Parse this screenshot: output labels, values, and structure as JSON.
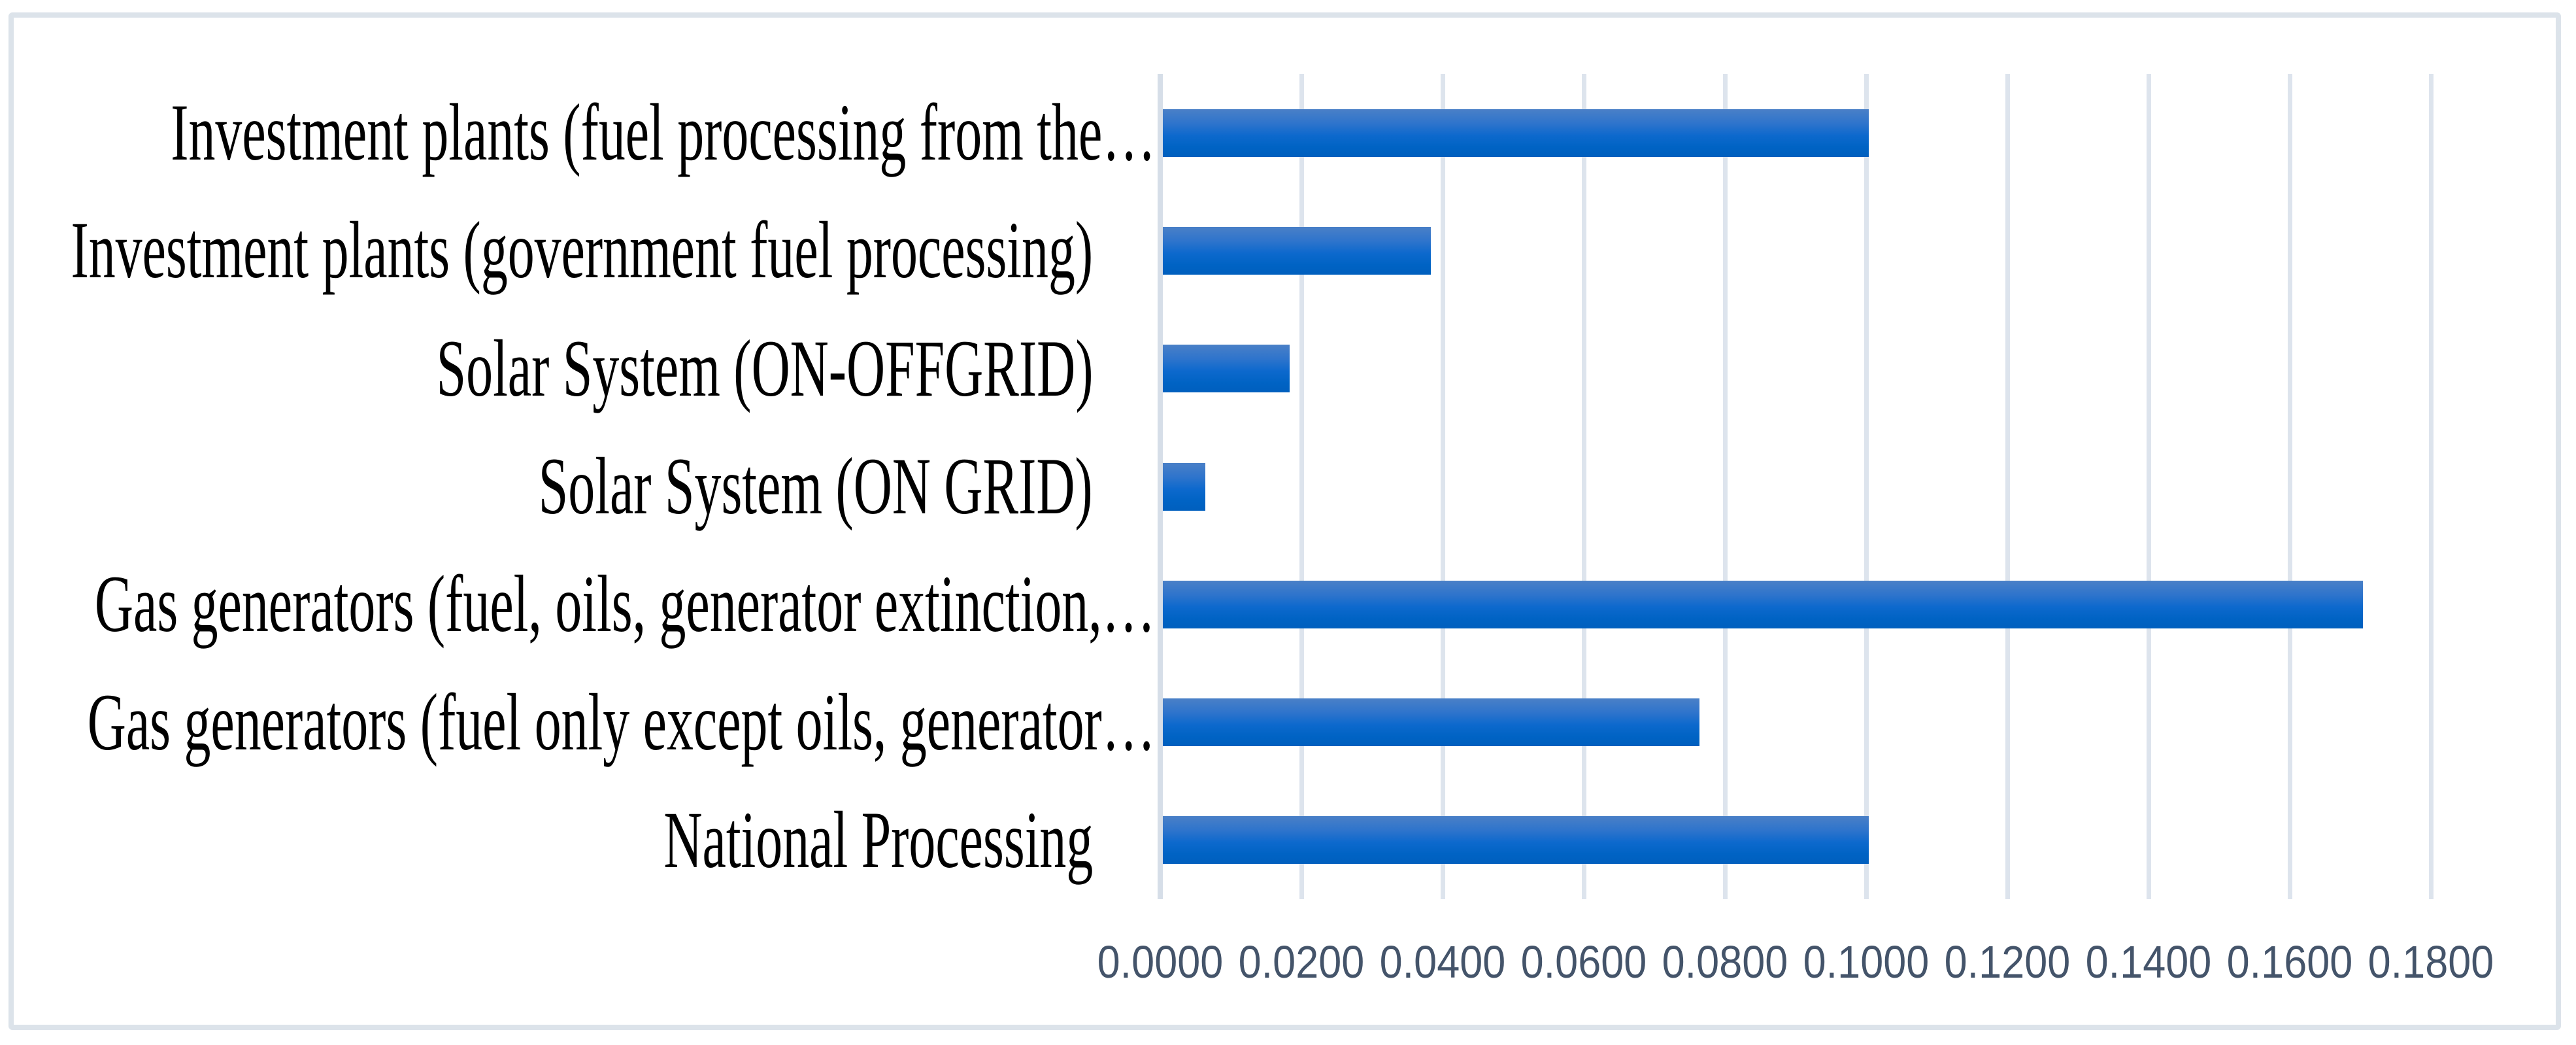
{
  "chart_data": {
    "type": "bar",
    "orientation": "horizontal",
    "title": "",
    "xlabel": "",
    "ylabel": "",
    "categories": [
      "Investment plants (fuel processing from the…",
      "Investment plants (government fuel processing)",
      "Solar System (ON-OFFGRID)",
      "Solar System (ON GRID)",
      "Gas generators (fuel, oils, generator extinction,…",
      "Gas generators (fuel only except oils, generator…",
      "National Processing"
    ],
    "values": [
      0.1,
      0.038,
      0.018,
      0.006,
      0.17,
      0.076,
      0.1
    ],
    "xlim": [
      0.0,
      0.18
    ],
    "x_tick_values": [
      0.0,
      0.02,
      0.04,
      0.06,
      0.08,
      0.1,
      0.12,
      0.14,
      0.16,
      0.18
    ],
    "x_tick_labels": [
      "0.0000",
      "0.0200",
      "0.0400",
      "0.0600",
      "0.0800",
      "0.1000",
      "0.1200",
      "0.1400",
      "0.1600",
      "0.1800"
    ],
    "grid": "vertical-gridlines-on",
    "legend": "none"
  },
  "colors": {
    "bar_gradient_top": "#4a80c7",
    "bar_gradient_upper_mid": "#2e74cc",
    "bar_gradient_mid": "#0d69cd",
    "bar_gradient_lower_mid": "#0063c4",
    "bar_gradient_bottom": "#005fbe",
    "gridline": "#dde4ed",
    "axis_line": "#d6dee8",
    "tick_label": "#44546a",
    "category_label": "#000000",
    "chart_border": "#dce3ea",
    "background": "#ffffff"
  }
}
